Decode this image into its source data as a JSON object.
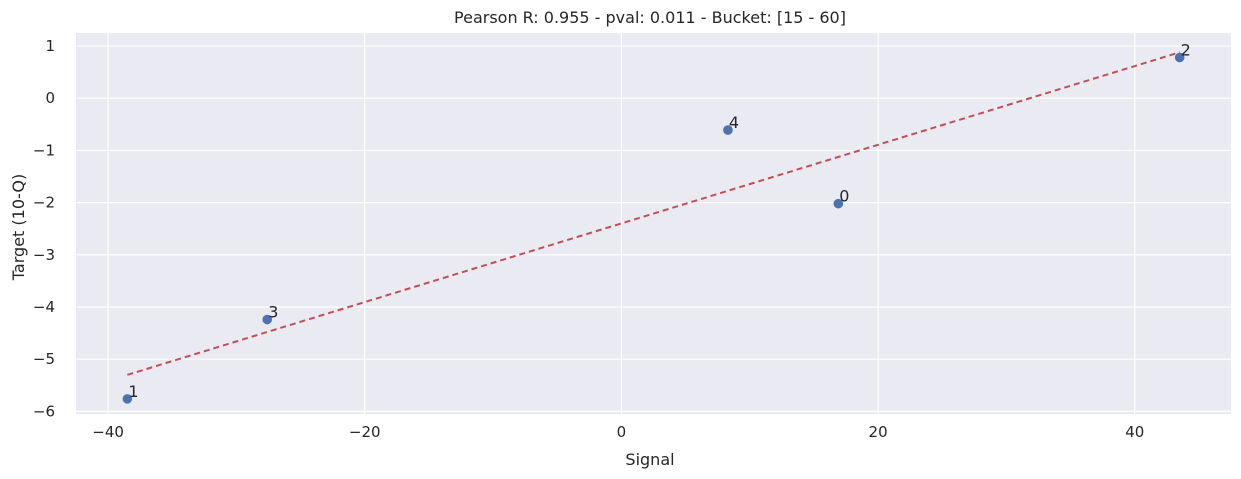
{
  "chart_data": {
    "type": "scatter",
    "title": "Pearson R: 0.955 - pval: 0.011 - Bucket: [15 - 60]",
    "xlabel": "Signal",
    "ylabel": "Target (10-Q)",
    "xlim": [
      -42.5,
      47.5
    ],
    "ylim": [
      -6.05,
      1.25
    ],
    "xticks": [
      -40,
      -20,
      0,
      20,
      40
    ],
    "yticks": [
      1,
      0,
      -1,
      -2,
      -3,
      -4,
      -5,
      -6
    ],
    "grid": true,
    "points": [
      {
        "label": "0",
        "x": 16.9,
        "y": -2.02
      },
      {
        "label": "1",
        "x": -38.5,
        "y": -5.76
      },
      {
        "label": "2",
        "x": 43.5,
        "y": 0.78
      },
      {
        "label": "3",
        "x": -27.6,
        "y": -4.24
      },
      {
        "label": "4",
        "x": 8.3,
        "y": -0.61
      }
    ],
    "fit_line": {
      "x": [
        -38.5,
        43.5
      ],
      "y": [
        -5.3,
        0.88
      ]
    },
    "colors": {
      "background": "#eaeaf2",
      "grid": "#ffffff",
      "points": "#4c72b0",
      "fit_line": "#c44e52"
    }
  }
}
